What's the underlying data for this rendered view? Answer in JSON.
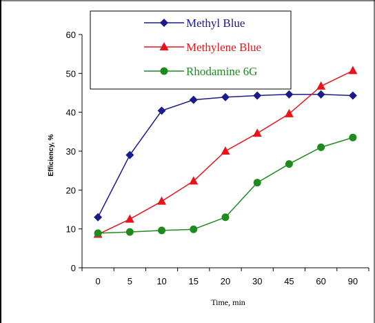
{
  "chart_data": {
    "type": "line",
    "categories": [
      "0",
      "5",
      "10",
      "15",
      "20",
      "30",
      "45",
      "60",
      "90"
    ],
    "series": [
      {
        "name": "Methyl Blue",
        "color": "#1a1a8c",
        "marker": "diamond",
        "values": [
          13.0,
          29.0,
          40.4,
          43.2,
          43.9,
          44.3,
          44.6,
          44.6,
          44.3
        ]
      },
      {
        "name": "Methylene Blue",
        "color": "#e8141a",
        "marker": "triangle",
        "values": [
          8.6,
          12.5,
          17.1,
          22.3,
          30.0,
          34.6,
          39.6,
          46.7,
          50.7
        ]
      },
      {
        "name": "Rhodamine 6G",
        "color": "#1f8a1f",
        "marker": "circle",
        "values": [
          8.9,
          9.2,
          9.6,
          9.9,
          13.0,
          21.9,
          26.7,
          31.0,
          33.5
        ]
      }
    ],
    "xlabel": "Time, min",
    "ylabel": "Efficiency, %",
    "ylim": [
      0,
      60
    ],
    "yticks": [
      0,
      10,
      20,
      30,
      40,
      50,
      60
    ],
    "grid": false,
    "legend_position": "top"
  }
}
